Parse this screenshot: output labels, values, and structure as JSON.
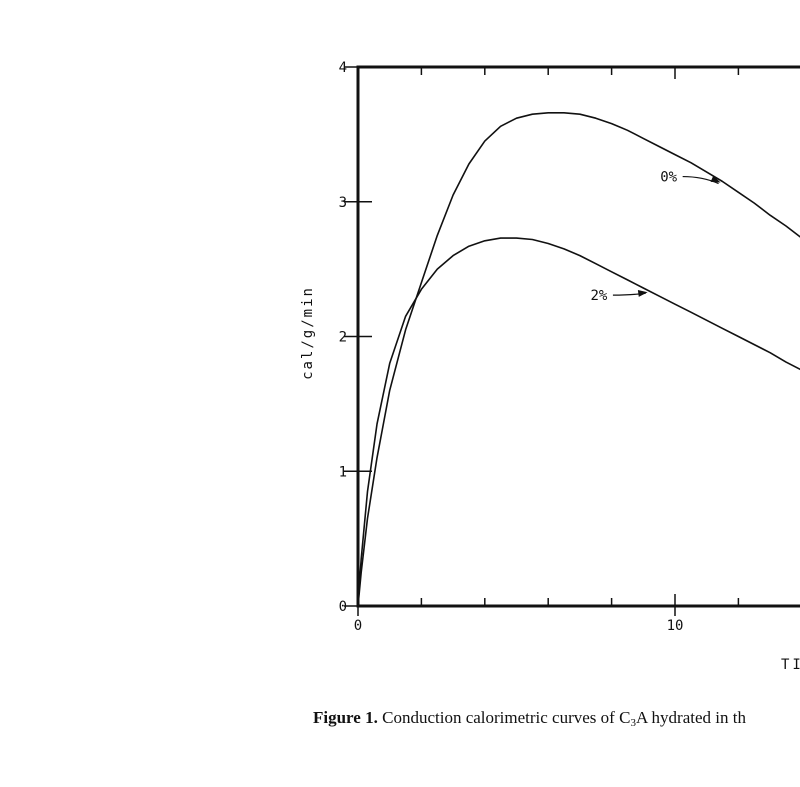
{
  "chart_data": {
    "type": "line",
    "xlabel": "TI",
    "ylabel": "cal/g/min",
    "xlim": [
      0,
      14
    ],
    "ylim": [
      0,
      4
    ],
    "x_ticks": [
      0,
      10
    ],
    "x_ticks_unlabeled": [
      2,
      4,
      6,
      8,
      12
    ],
    "y_ticks": [
      0,
      1,
      2,
      3,
      4
    ],
    "grid": false,
    "series": [
      {
        "name": "0%",
        "x": [
          0,
          0.1,
          0.3,
          0.6,
          1.0,
          1.5,
          2.0,
          2.5,
          3.0,
          3.5,
          4.0,
          4.5,
          5.0,
          5.5,
          6.0,
          6.5,
          7.0,
          7.5,
          8.0,
          8.5,
          9.0,
          9.5,
          10.0,
          10.5,
          11.0,
          11.5,
          12.0,
          12.5,
          13.0,
          13.5,
          14.0
        ],
        "y": [
          0,
          0.25,
          0.65,
          1.1,
          1.6,
          2.05,
          2.4,
          2.75,
          3.05,
          3.28,
          3.45,
          3.56,
          3.62,
          3.65,
          3.66,
          3.66,
          3.65,
          3.62,
          3.58,
          3.53,
          3.47,
          3.41,
          3.35,
          3.29,
          3.22,
          3.15,
          3.07,
          2.99,
          2.9,
          2.82,
          2.73
        ]
      },
      {
        "name": "2%",
        "x": [
          0,
          0.1,
          0.3,
          0.6,
          1.0,
          1.5,
          2.0,
          2.5,
          3.0,
          3.5,
          4.0,
          4.5,
          5.0,
          5.5,
          6.0,
          6.5,
          7.0,
          7.5,
          8.0,
          8.5,
          9.0,
          9.5,
          10.0,
          10.5,
          11.0,
          11.5,
          12.0,
          12.5,
          13.0,
          13.5,
          14.0
        ],
        "y": [
          0,
          0.35,
          0.85,
          1.35,
          1.8,
          2.15,
          2.35,
          2.5,
          2.6,
          2.67,
          2.71,
          2.73,
          2.73,
          2.72,
          2.69,
          2.65,
          2.6,
          2.54,
          2.48,
          2.42,
          2.36,
          2.3,
          2.24,
          2.18,
          2.12,
          2.06,
          2.0,
          1.94,
          1.88,
          1.81,
          1.75
        ]
      }
    ],
    "annotations": [
      {
        "text": "0%",
        "series": "0%",
        "target_x": 11.5,
        "label_x": 9.8,
        "label_y": 3.15
      },
      {
        "text": "2%",
        "series": "2%",
        "target_x": 9.2,
        "label_x": 7.6,
        "label_y": 2.27
      }
    ]
  },
  "caption": {
    "label": "Figure 1.",
    "text_before_sub": "Conduction calorimetric curves of C",
    "subscript": "3",
    "text_after_sub": "A hydrated in th"
  }
}
